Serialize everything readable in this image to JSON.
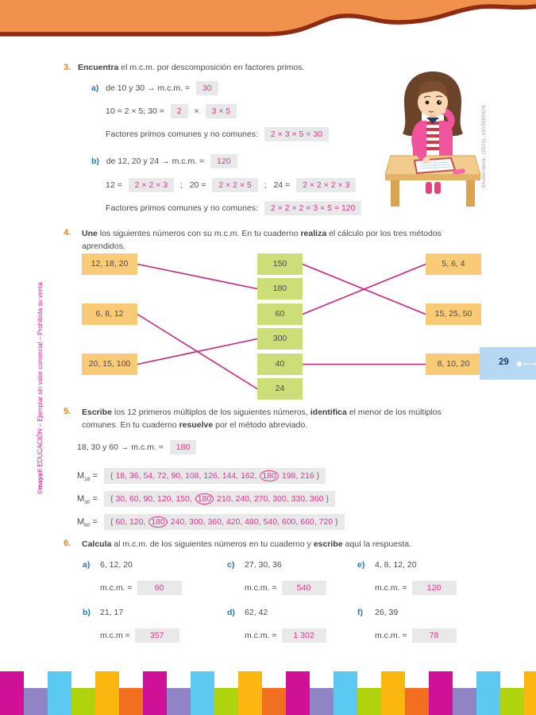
{
  "page_number": "29",
  "credits": {
    "publisher_brand": "©maya®",
    "publisher_rest": " EDUCACIÓN – Ejemplar sin valor comercial – Prohibida su venta",
    "photo": "Shutterstock, (2021), 1415602679"
  },
  "colors": {
    "accent_orange": "#F08223",
    "accent_blue": "#1E76BC",
    "answer_pink": "#E5338C",
    "answer_box_bg": "#E9E9E9",
    "match_side_box": "#FACB77",
    "match_center_box": "#CBDE78",
    "match_line": "#C9247F",
    "wave_fill": "#F2914D",
    "wave_stroke": "#8E2B11",
    "badge_bg": "#B7D8F2",
    "stripe": [
      "#CE1197",
      "#9184C6",
      "#5BC9F1",
      "#AFD40E",
      "#FBB60F",
      "#F26F21"
    ]
  },
  "ex3": {
    "number": "3.",
    "title_bold": "Encuentra",
    "title_rest": " el m.c.m. por descomposición en factores primos.",
    "a": {
      "letter": "a)",
      "prompt": "de 10 y 30 → m.c.m. =",
      "mcm": "30",
      "line1_pre": "10 = 2 × 5; 30 =",
      "factor1": "2",
      "times": "×",
      "factor2": "3 × 5",
      "factors_label": "Factores primos comunes y no comunes:",
      "factors_answer": "2 × 3 × 5 = 30"
    },
    "b": {
      "letter": "b)",
      "prompt": "de 12, 20 y 24 → m.c.m. =",
      "mcm": "120",
      "eq1_label": "12 =",
      "eq1": "2 × 2 × 3",
      "sep1": ";",
      "eq2_label": "20 =",
      "eq2": "2 × 2 × 5",
      "sep2": ";",
      "eq3_label": "24 =",
      "eq3": "2 × 2 × 2 × 3",
      "factors_label": "Factores primos comunes y no comunes:",
      "factors_answer": "2 × 2 × 2 × 3 × 5 = 120"
    }
  },
  "ex4": {
    "number": "4.",
    "title_seg1_bold": "Une",
    "title_seg2": " los siguientes números con su m.c.m. En tu cuaderno ",
    "title_seg3_bold": "realiza",
    "title_seg4": " el cálculo por los tres métodos aprendidos.",
    "left_boxes": [
      {
        "id": "L0",
        "label": "12, 18, 20"
      },
      {
        "id": "L1",
        "label": "6, 8, 12"
      },
      {
        "id": "L2",
        "label": "20, 15, 100"
      }
    ],
    "middle_boxes": [
      {
        "id": "M0",
        "label": "150"
      },
      {
        "id": "M1",
        "label": "180"
      },
      {
        "id": "M2",
        "label": "60"
      },
      {
        "id": "M3",
        "label": "300"
      },
      {
        "id": "M4",
        "label": "40"
      },
      {
        "id": "M5",
        "label": "24"
      }
    ],
    "right_boxes": [
      {
        "id": "R0",
        "label": "5, 6, 4"
      },
      {
        "id": "R1",
        "label": "15, 25, 50"
      },
      {
        "id": "R2",
        "label": "8, 10, 20"
      }
    ],
    "connections": [
      [
        "L0",
        "M1"
      ],
      [
        "L1",
        "M5"
      ],
      [
        "L2",
        "M3"
      ],
      [
        "M0",
        "R1"
      ],
      [
        "M2",
        "R0"
      ],
      [
        "M4",
        "R2"
      ]
    ]
  },
  "ex5": {
    "number": "5.",
    "title_seg1_bold": "Escribe",
    "title_seg2": " los 12 primeros múltiplos de los siguientes números, ",
    "title_seg3_bold": "identifica",
    "title_seg4": " el menor de los múltiplos comunes. En tu cuaderno ",
    "title_seg5_bold": "resuelve",
    "title_seg6": " por el método abreviado.",
    "intro_prompt": "18, 30 y 60 → m.c.m. =",
    "intro_answer": "180",
    "rows": [
      {
        "label": "M",
        "sub": "18",
        "open": "{",
        "before": "18, 36, 54, 72, 90, 108, 126, 144, 162,",
        "circled": "180",
        "after": "198, 216",
        "close": "}"
      },
      {
        "label": "M",
        "sub": "30",
        "open": "{",
        "before": "30, 60, 90, 120, 150,",
        "circled": "180",
        "after": "210, 240, 270, 300, 330, 360",
        "close": "}"
      },
      {
        "label": "M",
        "sub": "60",
        "open": "{",
        "before": "60, 120,",
        "circled": "180",
        "after": "240, 300, 360, 420, 480, 540, 600, 660, 720",
        "close": "}"
      }
    ]
  },
  "ex6": {
    "number": "6.",
    "title_seg1_bold": "Calcula",
    "title_seg2": " al m.c.m. de los siguientes números en tu cuaderno y ",
    "title_seg3_bold": "escribe",
    "title_seg4": " aquí la respuesta.",
    "items": [
      {
        "letter": "a)",
        "numbers": "6, 12, 20",
        "mcm_label": "m.c.m. =",
        "answer": "60"
      },
      {
        "letter": "b)",
        "numbers": "21, 17",
        "mcm_label": "m.c.m =",
        "answer": "357"
      },
      {
        "letter": "c)",
        "numbers": "27, 30, 36",
        "mcm_label": "m.c.m. =",
        "answer": "540"
      },
      {
        "letter": "d)",
        "numbers": "62, 42",
        "mcm_label": "m.c.m. =",
        "answer": "1 302"
      },
      {
        "letter": "e)",
        "numbers": "4, 8, 12, 20",
        "mcm_label": "m.c.m. =",
        "answer": "120"
      },
      {
        "letter": "f)",
        "numbers": "26, 39",
        "mcm_label": "m.c.m. =",
        "answer": "78"
      }
    ]
  }
}
